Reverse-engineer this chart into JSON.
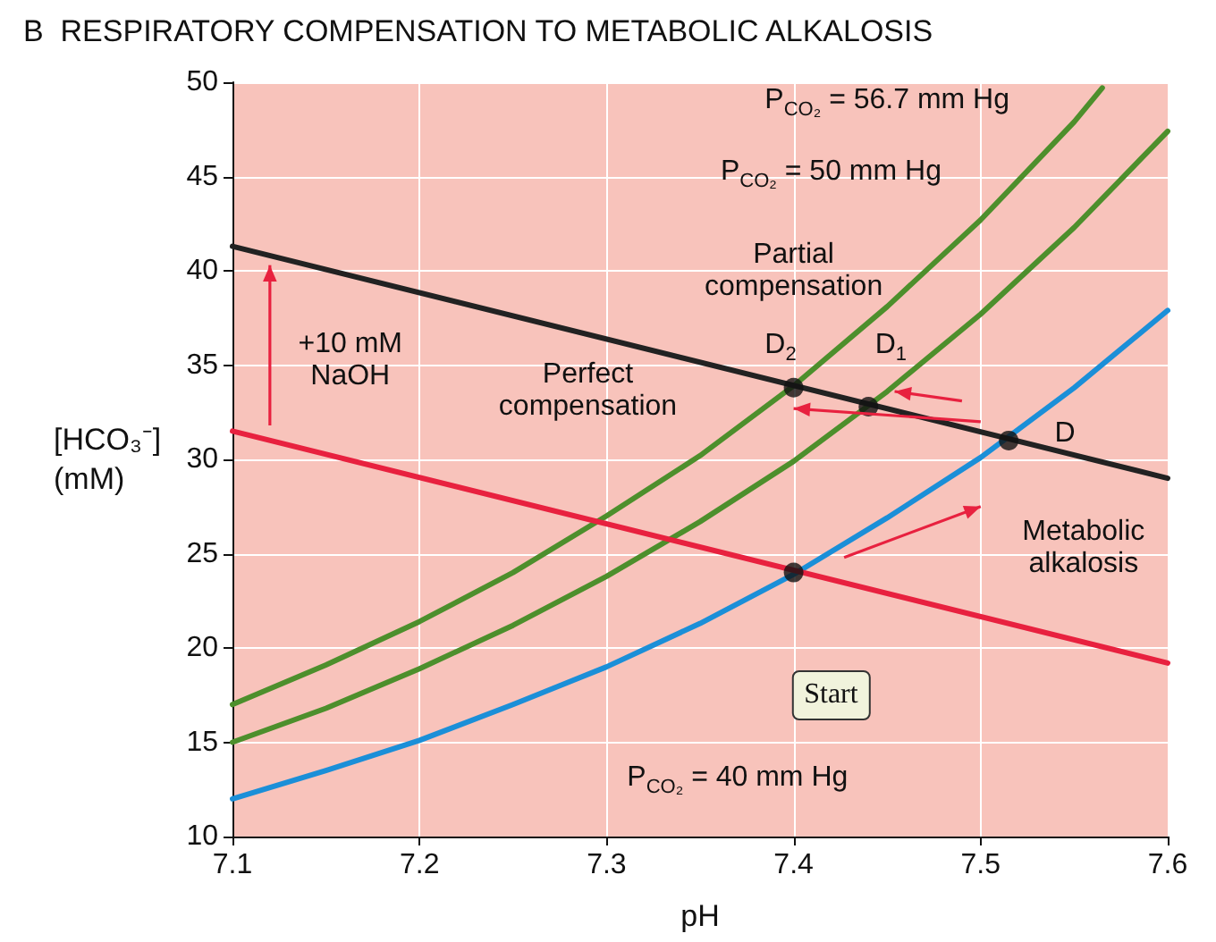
{
  "chart_data": {
    "type": "line",
    "title": "B  RESPIRATORY COMPENSATION TO METABOLIC ALKALOSIS",
    "xlabel": "pH",
    "ylabel": "[HCO₃⁻]\n(mM)",
    "xlim": [
      7.1,
      7.6
    ],
    "ylim": [
      10,
      50
    ],
    "xticks": [
      7.1,
      7.2,
      7.3,
      7.4,
      7.5,
      7.6
    ],
    "yticks": [
      10,
      15,
      20,
      25,
      30,
      35,
      40,
      45,
      50
    ],
    "grid": true,
    "marker": "none",
    "series": [
      {
        "color": "#1b8fd8",
        "x": [
          7.1,
          7.15,
          7.2,
          7.25,
          7.3,
          7.35,
          7.4,
          7.45,
          7.5,
          7.55,
          7.6
        ],
        "values": [
          12.0,
          13.5,
          15.1,
          17.0,
          19.0,
          21.3,
          23.9,
          26.9,
          30.1,
          33.8,
          37.9
        ]
      },
      {
        "color": "#4d8f2c",
        "x": [
          7.1,
          7.15,
          7.2,
          7.25,
          7.3,
          7.35,
          7.4,
          7.45,
          7.5,
          7.55,
          7.6
        ],
        "values": [
          15.0,
          16.8,
          18.9,
          21.2,
          23.8,
          26.7,
          29.9,
          33.6,
          37.7,
          42.3,
          47.4
        ]
      },
      {
        "color": "#4d8f2c",
        "x": [
          7.1,
          7.15,
          7.2,
          7.25,
          7.3,
          7.35,
          7.4,
          7.45,
          7.5,
          7.55,
          7.565
        ],
        "values": [
          17.0,
          19.1,
          21.4,
          24.0,
          27.0,
          30.2,
          33.9,
          38.1,
          42.7,
          47.9,
          49.7
        ]
      },
      {
        "color": "#222222",
        "x": [
          7.1,
          7.6
        ],
        "values": [
          41.3,
          29.0
        ]
      },
      {
        "color": "#e8213f",
        "x": [
          7.1,
          7.6
        ],
        "values": [
          31.5,
          19.2
        ]
      },
      {
        "type": "scatter",
        "marker": "circle",
        "color": "#111111",
        "x": [
          7.4,
          7.515,
          7.44,
          7.4
        ],
        "values": [
          24.0,
          31.0,
          32.8,
          33.8
        ]
      }
    ],
    "annotations": [
      "P$_{CO₂}$ = 56.7 mm Hg",
      "P$_{CO₂}$ = 50 mm Hg",
      "Partial\ncompensation",
      "D$_{2}$",
      "D$_{1}$",
      "D",
      "Perfect\ncompensation",
      "Metabolic\nalkalosis",
      "Start",
      "P$_{CO₂}$ = 40 mm Hg",
      "+10 mM\nNaOH"
    ]
  }
}
